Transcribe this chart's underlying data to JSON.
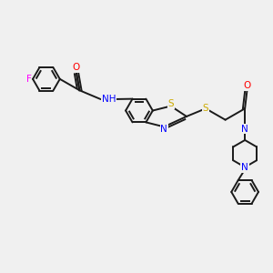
{
  "bg_color": "#f0f0f0",
  "bond_color": "#1a1a1a",
  "atom_colors": {
    "F": "#ff00ff",
    "O": "#ff0000",
    "N": "#0000ff",
    "S": "#ccaa00",
    "H": "#555555",
    "C": "#1a1a1a"
  },
  "figsize": [
    3.0,
    3.0
  ],
  "dpi": 100
}
